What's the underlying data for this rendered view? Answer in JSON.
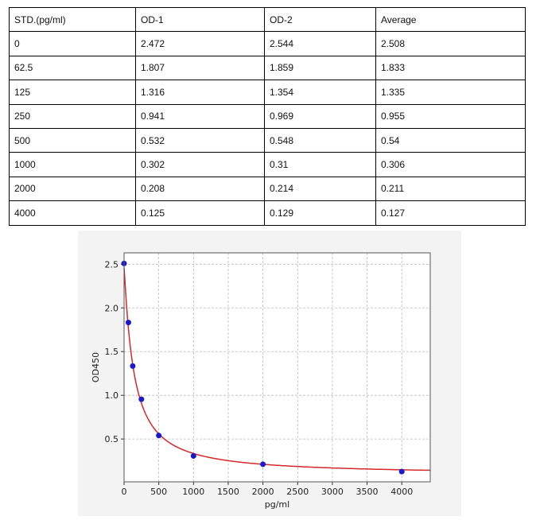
{
  "table": {
    "headers": [
      "STD.(pg/ml)",
      "OD-1",
      "OD-2",
      "Average"
    ],
    "rows": [
      [
        "0",
        "2.472",
        "2.544",
        "2.508"
      ],
      [
        "62.5",
        "1.807",
        "1.859",
        "1.833"
      ],
      [
        "125",
        "1.316",
        "1.354",
        "1.335"
      ],
      [
        "250",
        "0.941",
        "0.969",
        "0.955"
      ],
      [
        "500",
        "0.532",
        "0.548",
        "0.54"
      ],
      [
        "1000",
        "0.302",
        "0.31",
        "0.306"
      ],
      [
        "2000",
        "0.208",
        "0.214",
        "0.211"
      ],
      [
        "4000",
        "0.125",
        "0.129",
        "0.127"
      ]
    ]
  },
  "chart_data": {
    "type": "scatter",
    "title": "",
    "xlabel": "pg/ml",
    "ylabel": "OD450",
    "xlim": [
      0,
      4410
    ],
    "ylim": [
      0.01,
      2.63
    ],
    "xticks": [
      "0",
      "500",
      "1000",
      "1500",
      "2000",
      "2500",
      "3000",
      "3500",
      "4000"
    ],
    "yticks": [
      "0.5",
      "1.0",
      "1.5",
      "2.0",
      "2.5"
    ],
    "grid": true,
    "x": [
      0,
      62.5,
      125,
      250,
      500,
      1000,
      2000,
      4000
    ],
    "y": [
      2.508,
      1.833,
      1.335,
      0.955,
      0.54,
      0.306,
      0.211,
      0.127
    ],
    "point_color": "#1a1acc",
    "fit_curve_color": "#d62728"
  }
}
